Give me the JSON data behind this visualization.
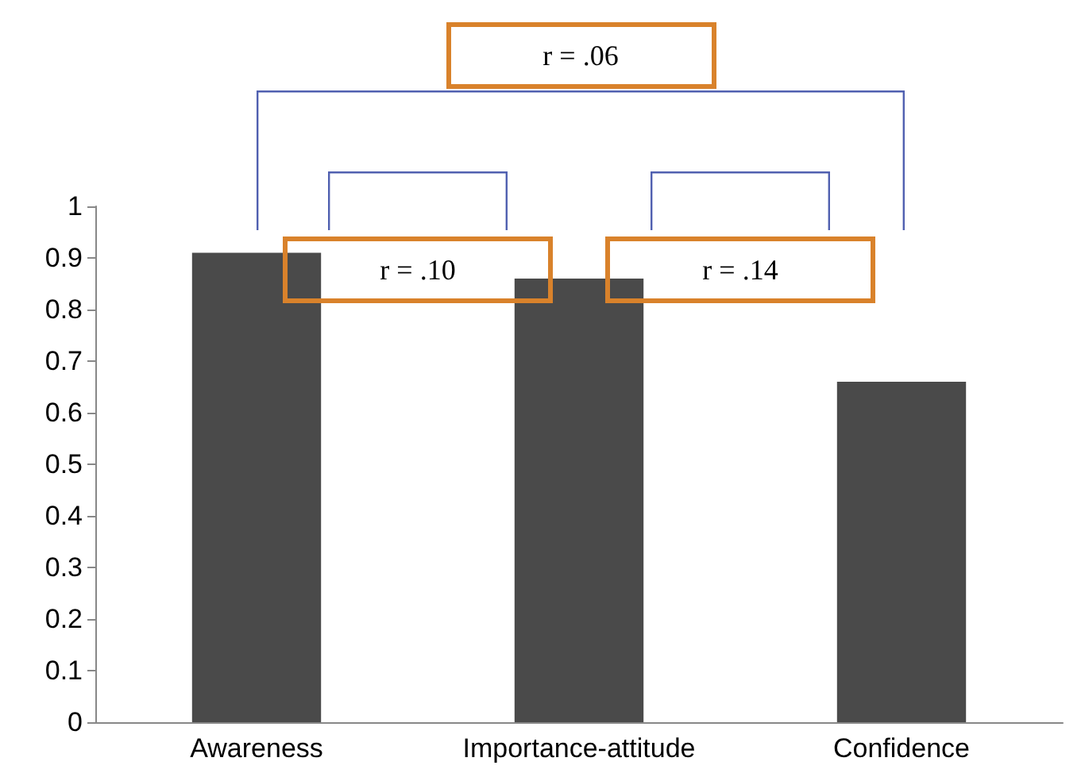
{
  "chart_data": {
    "type": "bar",
    "categories": [
      "Awareness",
      "Importance-attitude",
      "Confidence"
    ],
    "values": [
      0.91,
      0.86,
      0.66
    ],
    "color": "#4a4a4a",
    "ylim": [
      0,
      1
    ],
    "yticks": [
      0,
      0.1,
      0.2,
      0.3,
      0.4,
      0.5,
      0.6,
      0.7,
      0.8,
      0.9,
      1
    ],
    "grid": false,
    "annotations": [
      "r = .06",
      "r = .10",
      "r = .14"
    ]
  }
}
